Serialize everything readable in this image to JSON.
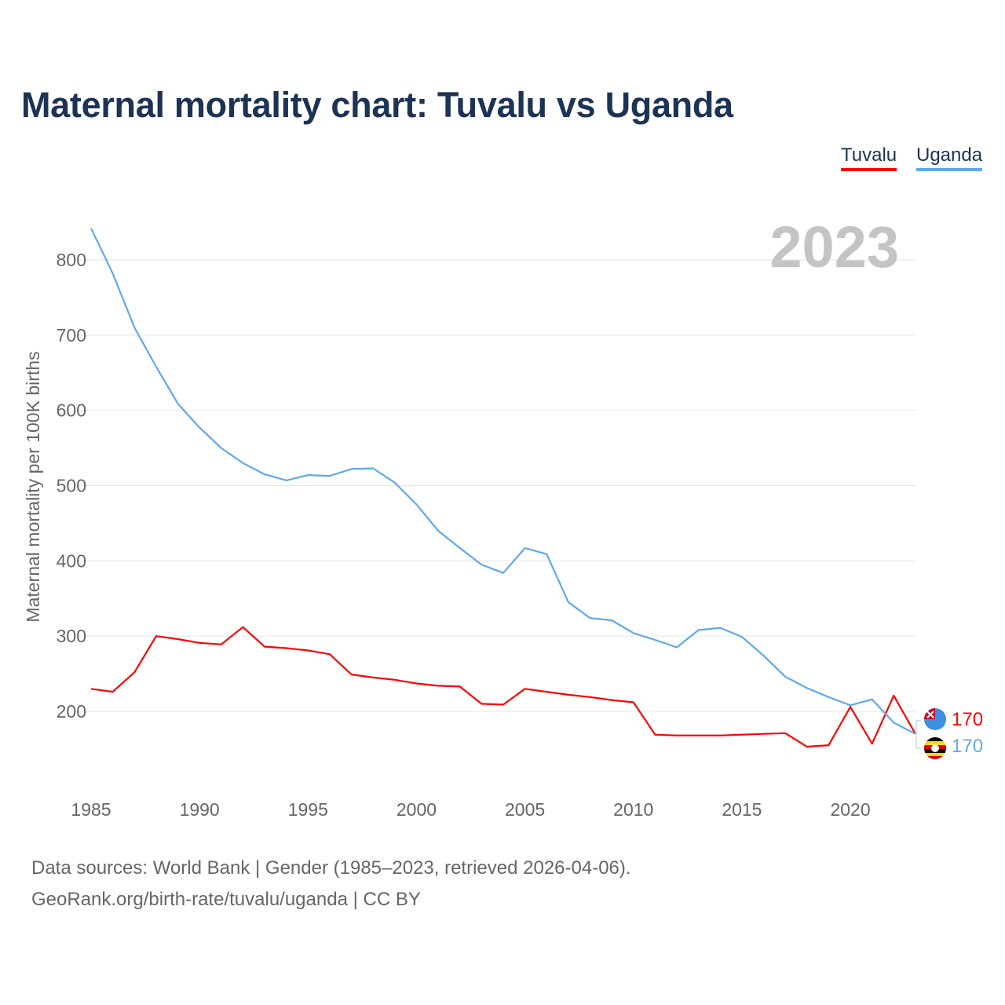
{
  "title": "Maternal mortality chart: Tuvalu vs Uganda",
  "year_watermark": "2023",
  "legend": [
    {
      "label": "Tuvalu",
      "color": "#ff0000"
    },
    {
      "label": "Uganda",
      "color": "#60a8ec"
    }
  ],
  "footer": {
    "line1": "Data sources: World Bank | Gender (1985–2023, retrieved 2026-04-06).",
    "line2": "GeoRank.org/birth-rate/tuvalu/uganda | CC BY"
  },
  "chart_data": {
    "type": "line",
    "title": "Maternal mortality chart: Tuvalu vs Uganda",
    "xlabel": "",
    "ylabel": "Maternal mortality per 100K births",
    "x": [
      1985,
      1986,
      1987,
      1988,
      1989,
      1990,
      1991,
      1992,
      1993,
      1994,
      1995,
      1996,
      1997,
      1998,
      1999,
      2000,
      2001,
      2002,
      2003,
      2004,
      2005,
      2006,
      2007,
      2008,
      2009,
      2010,
      2011,
      2012,
      2013,
      2014,
      2015,
      2016,
      2017,
      2018,
      2019,
      2020,
      2021,
      2022,
      2023
    ],
    "xticks": [
      "1985",
      "1990",
      "1995",
      "2000",
      "2005",
      "2010",
      "2015",
      "2020"
    ],
    "yticks": [
      "200",
      "300",
      "400",
      "500",
      "600",
      "700",
      "800"
    ],
    "ylim": [
      100,
      900
    ],
    "grid": true,
    "legend_position": "top-right",
    "series": [
      {
        "name": "Tuvalu",
        "color": "#ff0000",
        "end_label": "170",
        "values": [
          230,
          226,
          252,
          300,
          296,
          291,
          289,
          312,
          286,
          284,
          281,
          276,
          249,
          245,
          242,
          237,
          234,
          233,
          210,
          209,
          230,
          226,
          222,
          219,
          215,
          212,
          169,
          168,
          168,
          168,
          169,
          170,
          171,
          153,
          155,
          206,
          157,
          221,
          170
        ]
      },
      {
        "name": "Uganda",
        "color": "#60a8ec",
        "end_label": "170",
        "values": [
          842,
          782,
          710,
          658,
          609,
          577,
          550,
          530,
          515,
          507,
          514,
          513,
          522,
          523,
          504,
          475,
          440,
          417,
          395,
          384,
          417,
          409,
          345,
          324,
          321,
          304,
          295,
          285,
          308,
          311,
          299,
          274,
          246,
          231,
          219,
          208,
          216,
          185,
          170
        ]
      }
    ]
  }
}
